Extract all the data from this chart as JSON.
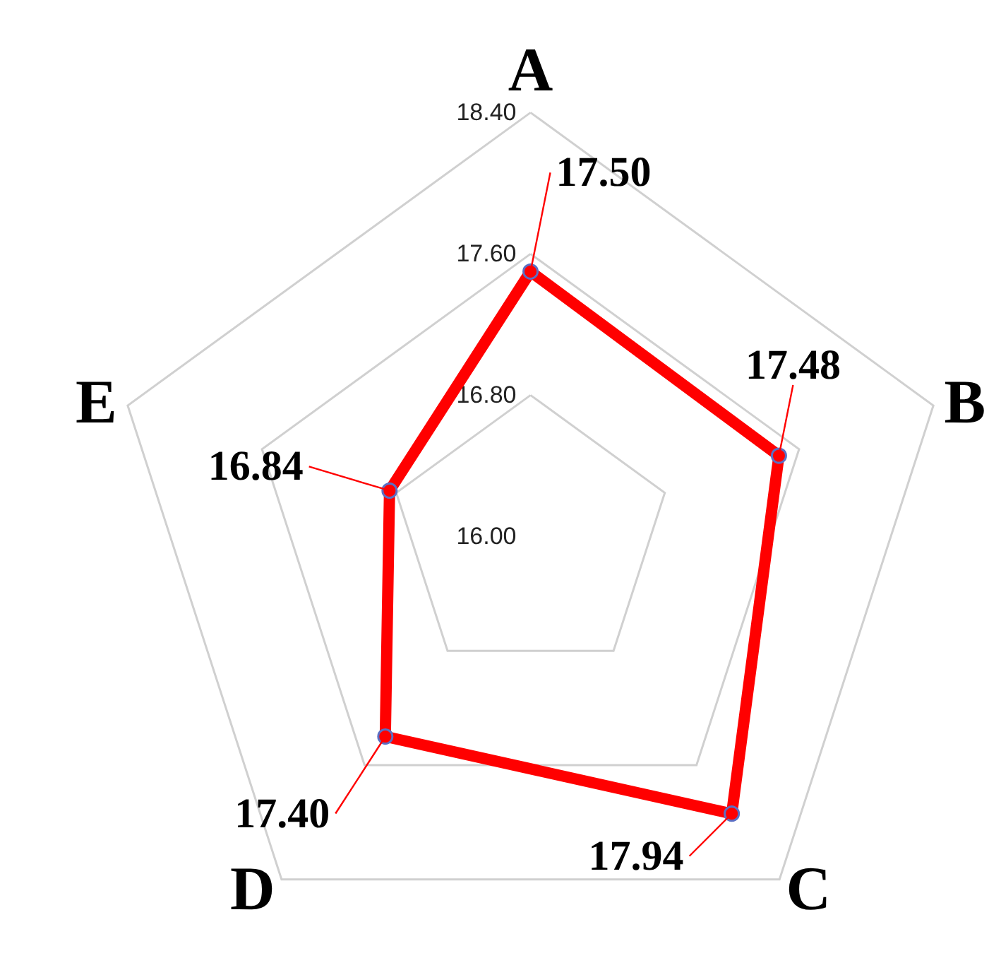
{
  "chart_data": {
    "type": "radar",
    "categories": [
      "A",
      "B",
      "C",
      "D",
      "E"
    ],
    "series": [
      {
        "color": "#ff0000",
        "values": [
          17.5,
          17.48,
          17.94,
          17.4,
          16.84
        ],
        "value_labels": [
          "17.50",
          "17.48",
          "17.94",
          "17.40",
          "16.84"
        ]
      }
    ],
    "ylim": [
      16.0,
      18.4
    ],
    "yticks": [
      {
        "value": 16.0,
        "label": "16.00"
      },
      {
        "value": 16.8,
        "label": "16.80"
      },
      {
        "value": 17.6,
        "label": "17.60"
      },
      {
        "value": 18.4,
        "label": "18.40"
      }
    ],
    "marker": "circle",
    "grid": true
  }
}
